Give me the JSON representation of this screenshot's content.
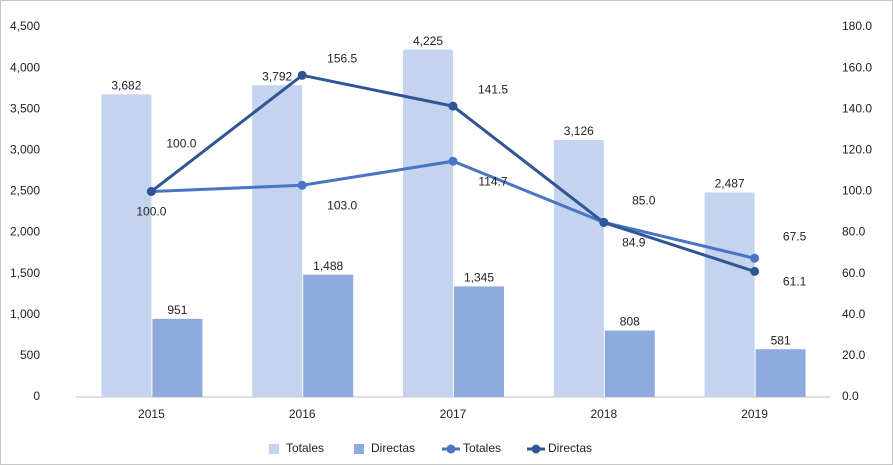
{
  "chart_data": {
    "type": "bar",
    "categories": [
      "2015",
      "2016",
      "2017",
      "2018",
      "2019"
    ],
    "series": [
      {
        "name": "Totales",
        "type": "bar",
        "color": "#c5d4ee",
        "values": [
          3682,
          3792,
          4225,
          3126,
          2487
        ],
        "value_labels": [
          "3,682",
          "3,792",
          "4,225",
          "3,126",
          "2,487"
        ]
      },
      {
        "name": "Directas",
        "type": "bar",
        "color": "#8faadc",
        "values": [
          951,
          1488,
          1345,
          808,
          581
        ],
        "value_labels": [
          "951",
          "1,488",
          "1,345",
          "808",
          "581"
        ]
      },
      {
        "name": "Totales",
        "type": "line",
        "axis": "y2",
        "color": "#4a74c6",
        "values": [
          100.0,
          103.0,
          114.7,
          85.0,
          67.5
        ],
        "value_labels": [
          "100.0",
          "103.0",
          "114.7",
          "85.0",
          "67.5"
        ]
      },
      {
        "name": "Directas",
        "type": "line",
        "axis": "y2",
        "color": "#2f5597",
        "values": [
          100.0,
          156.5,
          141.5,
          84.9,
          61.1
        ],
        "value_labels": [
          "100.0",
          "156.5",
          "141.5",
          "84.9",
          "61.1"
        ]
      }
    ],
    "ylim": [
      0,
      4500
    ],
    "yticks": [
      0,
      500,
      {
        "value": 1000,
        "label": "1,000"
      },
      {
        "value": 1500,
        "label": "1,500"
      },
      {
        "value": 2000,
        "label": "2,000"
      },
      {
        "value": 2500,
        "label": "2,500"
      },
      {
        "value": 3000,
        "label": "3,000"
      },
      {
        "value": 3500,
        "label": "3,500"
      },
      {
        "value": 4000,
        "label": "4,000"
      },
      {
        "value": 4500,
        "label": "4,500"
      }
    ],
    "y2lim": [
      0,
      180
    ],
    "y2ticks": [
      {
        "value": 0,
        "label": "0.0"
      },
      {
        "value": 20,
        "label": "20.0"
      },
      {
        "value": 40,
        "label": "40.0"
      },
      {
        "value": 60,
        "label": "60.0"
      },
      {
        "value": 80,
        "label": "80.0"
      },
      {
        "value": 100,
        "label": "100.0"
      },
      {
        "value": 120,
        "label": "120.0"
      },
      {
        "value": 140,
        "label": "140.0"
      },
      {
        "value": 160,
        "label": "160.0"
      },
      {
        "value": 180,
        "label": "180.0"
      }
    ],
    "grid": false,
    "legend": "bottom"
  }
}
